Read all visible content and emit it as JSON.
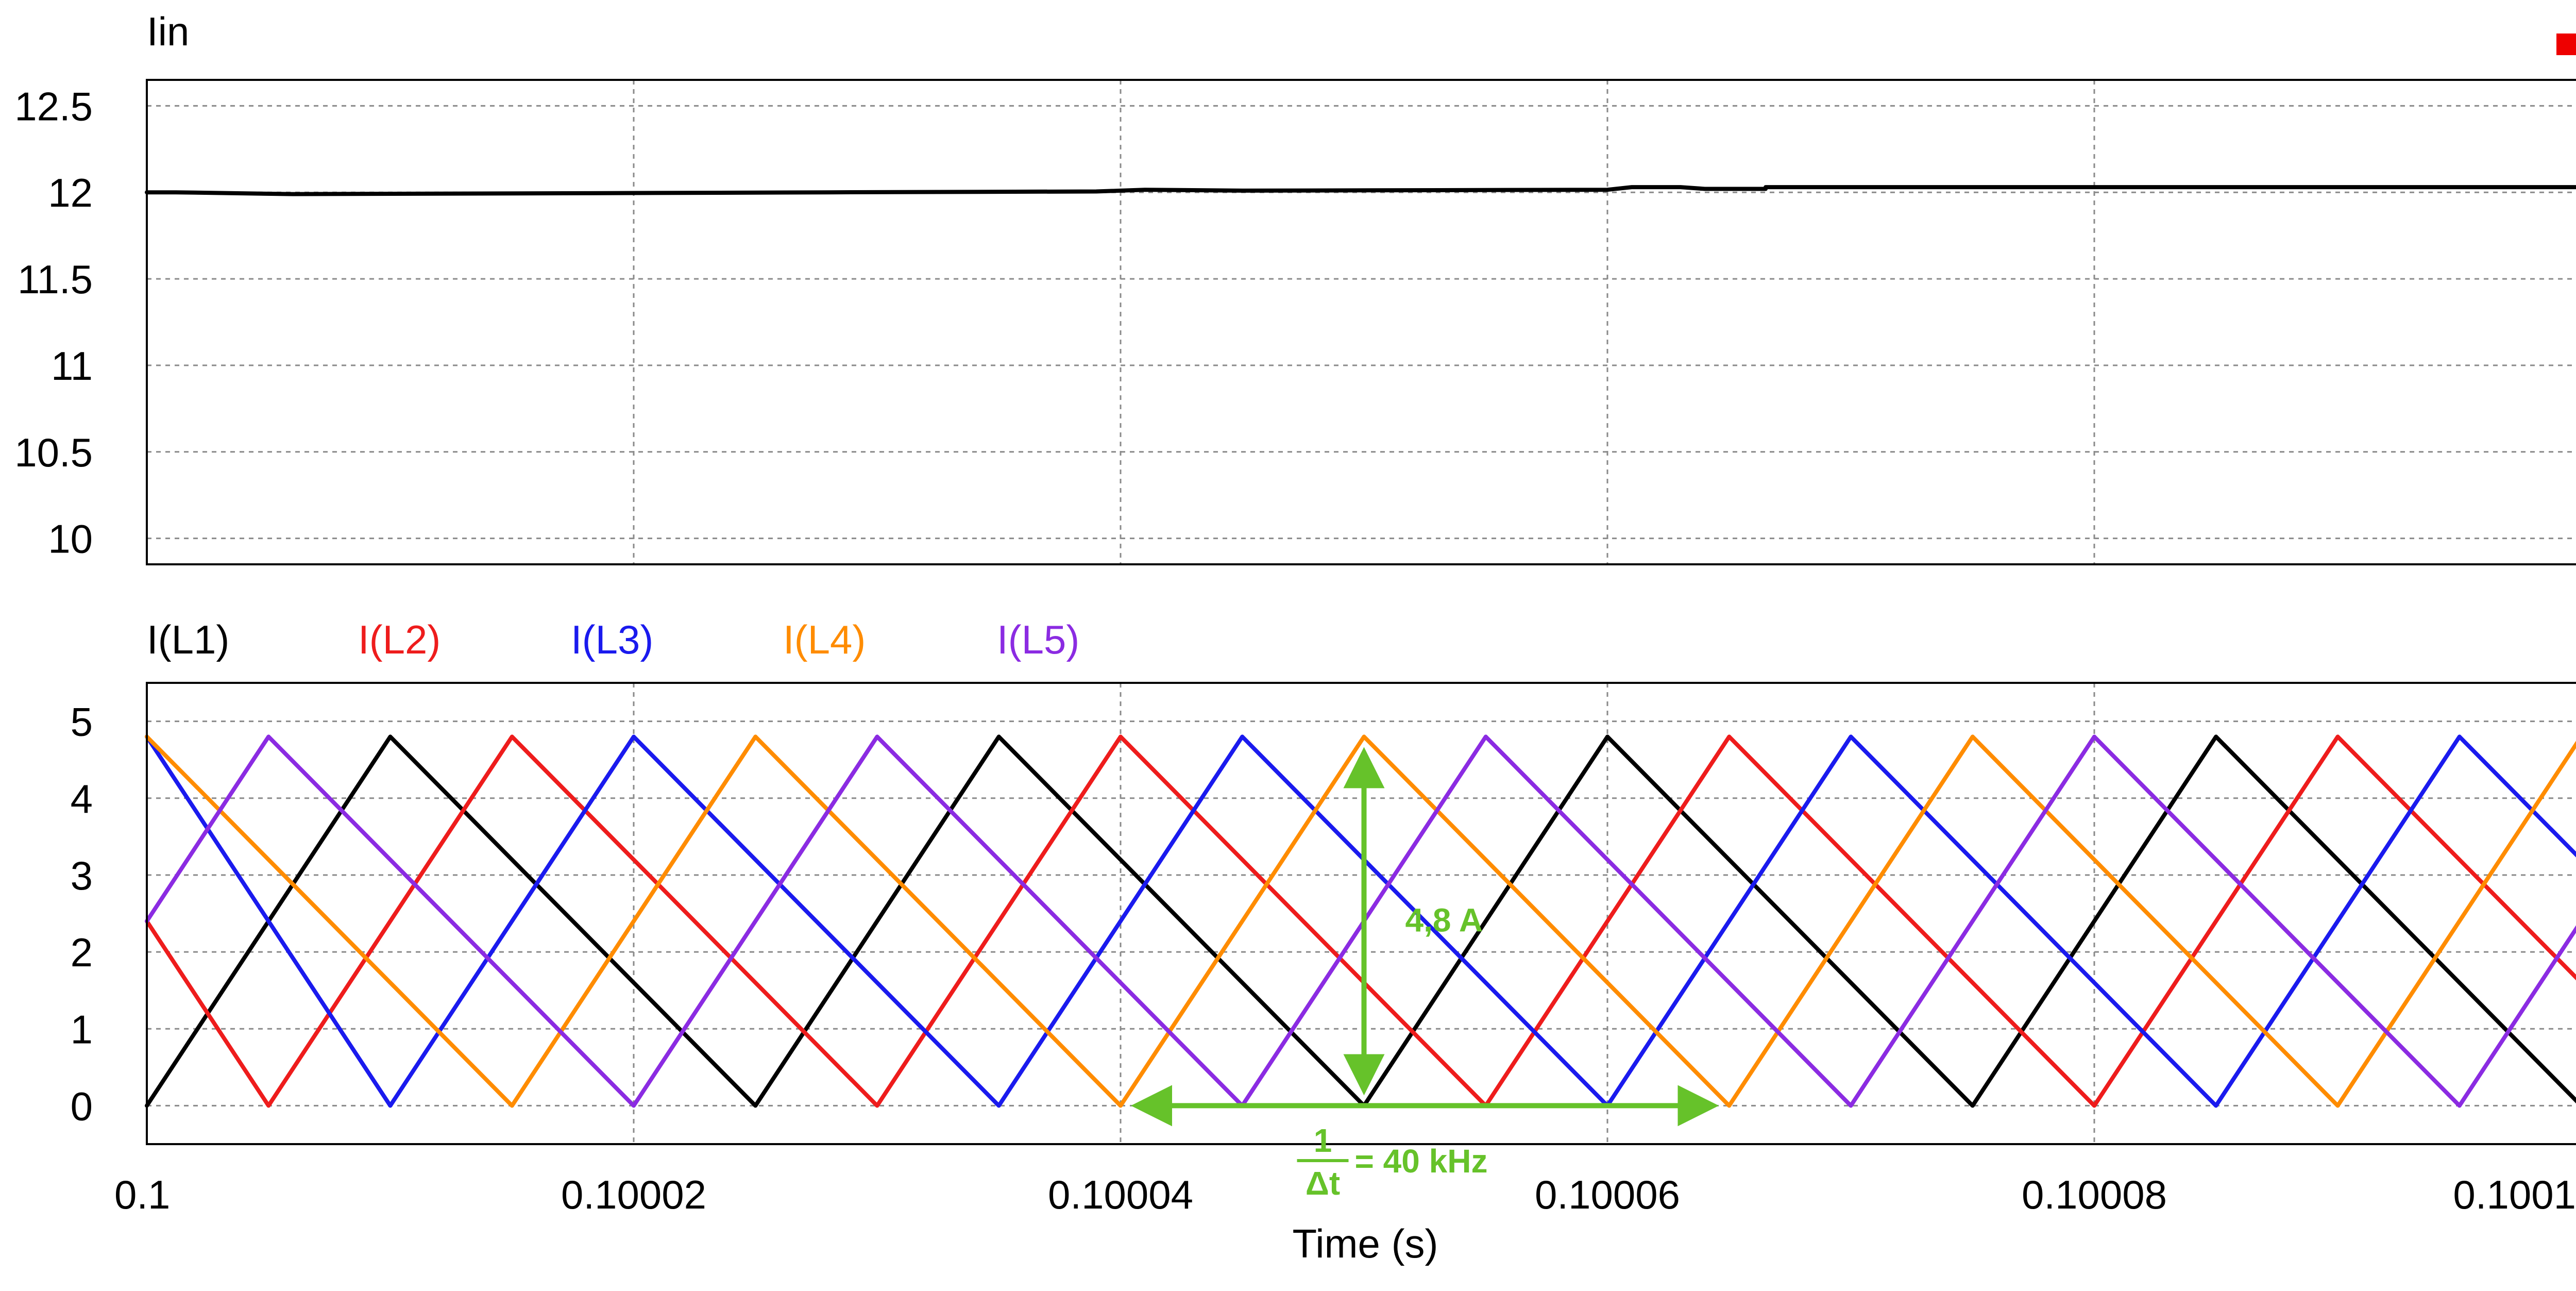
{
  "chart_data": [
    {
      "type": "line",
      "title": "Iin",
      "xlim": [
        0.1,
        0.1001
      ],
      "ylim": [
        9.85,
        12.65
      ],
      "yticks": [
        {
          "value": 10,
          "label": "10"
        },
        {
          "value": 10.5,
          "label": "10.5"
        },
        {
          "value": 11,
          "label": "11"
        },
        {
          "value": 11.5,
          "label": "11.5"
        },
        {
          "value": 12,
          "label": "12"
        },
        {
          "value": 12.5,
          "label": "12.5"
        }
      ],
      "xgrid": [
        0.10002,
        0.10004,
        0.10006,
        0.10008
      ],
      "grid": true,
      "series": [
        {
          "name": "Iin",
          "color": "#000000",
          "points": [
            [
              0.1,
              12.0
            ],
            [
              0.1000012,
              12.0
            ],
            [
              0.100006,
              11.99
            ],
            [
              0.100018,
              11.995
            ],
            [
              0.100028,
              12.0
            ],
            [
              0.100039,
              12.005
            ],
            [
              0.10004,
              12.01
            ],
            [
              0.100041,
              12.015
            ],
            [
              0.100045,
              12.01
            ],
            [
              0.10006,
              12.015
            ],
            [
              0.100061,
              12.03
            ],
            [
              0.100063,
              12.03
            ],
            [
              0.100064,
              12.02
            ],
            [
              0.1000665,
              12.02
            ],
            [
              0.1000665,
              12.03
            ],
            [
              0.1001,
              12.03
            ]
          ]
        }
      ],
      "legend_marker_color": "#ee0000"
    },
    {
      "type": "line",
      "legend": [
        {
          "label": "I(L1)",
          "color": "#000000"
        },
        {
          "label": "I(L2)",
          "color": "#ee1c1c"
        },
        {
          "label": "I(L3)",
          "color": "#1a1aee"
        },
        {
          "label": "I(L4)",
          "color": "#ff8c00"
        },
        {
          "label": "I(L5)",
          "color": "#8b2be2"
        }
      ],
      "xlabel": "Time (s)",
      "xlim": [
        0.1,
        0.1001
      ],
      "ylim": [
        -0.5,
        5.5
      ],
      "yticks": [
        {
          "value": 0,
          "label": "0"
        },
        {
          "value": 1,
          "label": "1"
        },
        {
          "value": 2,
          "label": "2"
        },
        {
          "value": 3,
          "label": "3"
        },
        {
          "value": 4,
          "label": "4"
        },
        {
          "value": 5,
          "label": "5"
        }
      ],
      "xticks": [
        {
          "value": 0.1,
          "label": "0.1"
        },
        {
          "value": 0.10002,
          "label": "0.10002"
        },
        {
          "value": 0.10004,
          "label": "0.10004"
        },
        {
          "value": 0.10006,
          "label": "0.10006"
        },
        {
          "value": 0.10008,
          "label": "0.10008"
        },
        {
          "value": 0.1001,
          "label": "0.1001"
        }
      ],
      "grid": true,
      "series": [
        {
          "name": "I(L1)",
          "color": "#000000",
          "peak": 4.8,
          "minimum_times": [
            0.100025,
            0.10005,
            0.100075,
            0.1001
          ],
          "peak_times": [
            0.10001,
            0.100035,
            0.10006,
            0.100085
          ]
        },
        {
          "name": "I(L2)",
          "color": "#ee1c1c",
          "peak": 4.8,
          "minimum_times": [
            0.100005,
            0.10003,
            0.100055,
            0.10008
          ],
          "peak_times": [
            0.100015,
            0.10004,
            0.100065,
            0.10009
          ]
        },
        {
          "name": "I(L3)",
          "color": "#1a1aee",
          "peak": 4.8,
          "minimum_times": [
            0.10001,
            0.100035,
            0.10006,
            0.100085
          ],
          "peak_times": [
            0.10002,
            0.100045,
            0.10007,
            0.100095
          ]
        },
        {
          "name": "I(L4)",
          "color": "#ff8c00",
          "peak": 4.8,
          "minimum_times": [
            0.100015,
            0.10004,
            0.100065,
            0.10009
          ],
          "peak_times": [
            0.1,
            0.100025,
            0.10005,
            0.100075,
            0.1001
          ]
        },
        {
          "name": "I(L5)",
          "color": "#8b2be2",
          "peak": 4.8,
          "minimum_times": [
            0.10002,
            0.100045,
            0.10007,
            0.100095
          ],
          "peak_times": [
            0.100005,
            0.10003,
            0.100055,
            0.10008
          ]
        }
      ],
      "annotations": {
        "color": "#66c22a",
        "amplitude": {
          "label": "4,8 A",
          "x": 0.10005,
          "from": 0,
          "to": 4.8
        },
        "period": {
          "numerator": "1",
          "denominator": "Δt",
          "equals": "= 40 kHz",
          "from": 0.10004,
          "to": 0.100065,
          "y": 0
        }
      }
    }
  ]
}
